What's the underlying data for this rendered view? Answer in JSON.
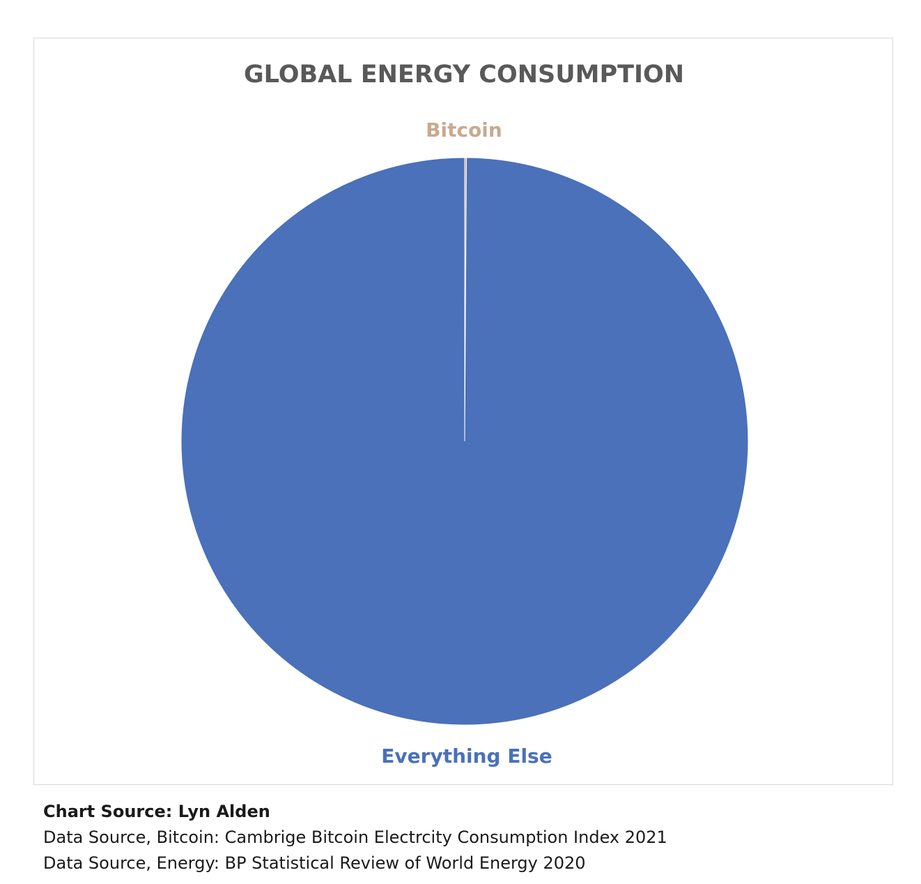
{
  "chart_data": {
    "type": "pie",
    "title": "GLOBAL ENERGY CONSUMPTION",
    "slices": [
      {
        "label": "Bitcoin",
        "value": 0.1,
        "color": "#c9a98f"
      },
      {
        "label": "Everything Else",
        "value": 99.9,
        "color": "#4a71b9"
      }
    ],
    "legend": "none",
    "data_labels": "slice names"
  },
  "sources": {
    "chart_source": "Chart Source: Lyn Alden",
    "bitcoin_source": "Data Source, Bitcoin: Cambrige Bitcoin Electrcity Consumption Index 2021",
    "energy_source": "Data Source, Energy: BP Statistical Review of World Energy 2020"
  }
}
